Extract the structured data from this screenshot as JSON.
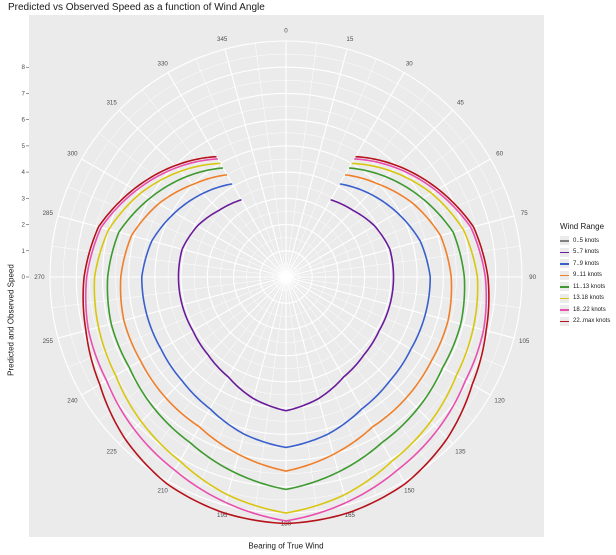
{
  "chart_data": {
    "type": "line",
    "coordinate_system": "polar",
    "title": "Predicted vs Observed Speed as a function of Wind Angle",
    "xlabel": "Bearing of True Wind",
    "ylabel": "Predicted and Observed Speed",
    "angle_ticks": [
      "0",
      "15",
      "30",
      "45",
      "60",
      "75",
      "90",
      "105",
      "120",
      "135",
      "150",
      "165",
      "180",
      "195",
      "210",
      "225",
      "240",
      "255",
      "270",
      "285",
      "300",
      "315",
      "330",
      "345"
    ],
    "radial_ticks": [
      "0",
      "1",
      "2",
      "3",
      "4",
      "5",
      "6",
      "7",
      "8"
    ],
    "radial_range": [
      0,
      9
    ],
    "grid": true,
    "legend": {
      "title": "Wind Range",
      "position": "right"
    },
    "angles": [
      30,
      45,
      60,
      75,
      90,
      105,
      120,
      135,
      150,
      165,
      180
    ],
    "series": [
      {
        "name": "0..5 knots",
        "color": "#808080",
        "values": []
      },
      {
        "name": "5..7 knots",
        "color": "#6a1b9a",
        "values": [
          3.4,
          3.6,
          3.9,
          4.1,
          4.1,
          4.1,
          4.1,
          4.2,
          4.4,
          4.8,
          5.1
        ]
      },
      {
        "name": "7..9 knots",
        "color": "#3a5fcd",
        "values": [
          4.1,
          4.5,
          4.9,
          5.3,
          5.5,
          5.5,
          5.5,
          5.6,
          5.8,
          6.2,
          6.5
        ]
      },
      {
        "name": "9..11 knots",
        "color": "#f07f2a",
        "values": [
          4.5,
          5.0,
          5.6,
          6.1,
          6.3,
          6.4,
          6.4,
          6.5,
          6.6,
          7.0,
          7.4
        ]
      },
      {
        "name": "11..13 knots",
        "color": "#3d9a2e",
        "values": [
          4.8,
          5.4,
          6.0,
          6.6,
          6.8,
          6.9,
          6.9,
          7.1,
          7.3,
          7.7,
          8.1
        ]
      },
      {
        "name": "13.18 knots",
        "color": "#d9c60f",
        "values": [
          5.0,
          5.7,
          6.4,
          7.0,
          7.3,
          7.4,
          7.5,
          7.8,
          8.1,
          8.6,
          9.0
        ]
      },
      {
        "name": "18..22 knots",
        "color": "#e94fae",
        "values": [
          5.2,
          5.9,
          6.6,
          7.3,
          7.6,
          7.8,
          7.9,
          8.2,
          8.5,
          8.9,
          9.3
        ]
      },
      {
        "name": "22..max knots",
        "color": "#b5121b",
        "values": [
          5.3,
          6.0,
          6.7,
          7.4,
          7.7,
          7.9,
          8.2,
          8.7,
          9.1,
          9.3,
          9.4
        ]
      }
    ]
  }
}
